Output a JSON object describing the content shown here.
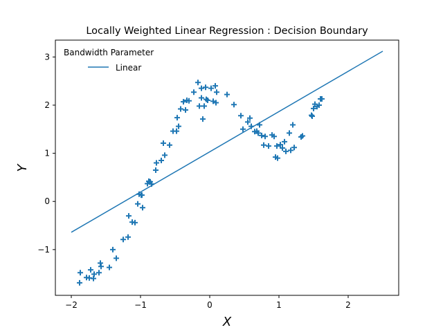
{
  "chart_data": {
    "type": "scatter",
    "title": "Locally Weighted Linear Regression : Decision Boundary",
    "xlabel": "X",
    "ylabel": "Y",
    "xlim": [
      -2.23,
      2.73
    ],
    "ylim": [
      -1.95,
      3.35
    ],
    "xticks": [
      -2,
      -1,
      0,
      1,
      2
    ],
    "yticks": [
      -1,
      0,
      1,
      2,
      3
    ],
    "xtick_labels": [
      "−2",
      "−1",
      "0",
      "1",
      "2"
    ],
    "ytick_labels": [
      "−1",
      "0",
      "1",
      "2",
      "3"
    ],
    "grid": false,
    "legend": {
      "title": "Bandwidth Parameter",
      "placement": "top-left",
      "entries": [
        "Linear"
      ]
    },
    "colors": {
      "series": "#1f77b4"
    },
    "series": [
      {
        "kind": "scatter",
        "marker": "plus",
        "x": [
          -1.88,
          -1.87,
          -1.78,
          -1.74,
          -1.72,
          -1.68,
          -1.67,
          -1.6,
          -1.58,
          -1.57,
          -1.45,
          -1.4,
          -1.35,
          -1.25,
          -1.18,
          -1.17,
          -1.12,
          -1.08,
          -1.04,
          -1.02,
          -0.99,
          -0.97,
          -0.98,
          -0.9,
          -0.88,
          -0.86,
          -0.84,
          -0.78,
          -0.77,
          -0.7,
          -0.67,
          -0.65,
          -0.58,
          -0.53,
          -0.48,
          -0.47,
          -0.45,
          -0.42,
          -0.38,
          -0.35,
          -0.33,
          -0.3,
          -0.23,
          -0.17,
          -0.15,
          -0.12,
          -0.12,
          -0.1,
          -0.08,
          -0.06,
          -0.05,
          -0.03,
          0.02,
          0.05,
          0.08,
          0.09,
          0.1,
          0.25,
          0.35,
          0.45,
          0.48,
          0.55,
          0.58,
          0.6,
          0.65,
          0.68,
          0.7,
          0.72,
          0.75,
          0.78,
          0.8,
          0.85,
          0.9,
          0.93,
          0.95,
          0.98,
          0.97,
          1.02,
          1.05,
          1.08,
          1.1,
          1.15,
          1.17,
          1.2,
          1.22,
          1.32,
          1.34,
          1.47,
          1.48,
          1.5,
          1.52,
          1.55,
          1.58,
          1.6,
          1.62
        ],
        "y": [
          -1.69,
          -1.48,
          -1.58,
          -1.59,
          -1.42,
          -1.6,
          -1.51,
          -1.48,
          -1.28,
          -1.35,
          -1.37,
          -1.0,
          -1.18,
          -0.79,
          -0.74,
          -0.3,
          -0.43,
          -0.44,
          -0.05,
          0.15,
          0.13,
          -0.13,
          0.13,
          0.37,
          0.42,
          0.41,
          0.36,
          0.65,
          0.8,
          0.85,
          1.21,
          0.96,
          1.17,
          1.46,
          1.46,
          1.74,
          1.56,
          1.92,
          2.07,
          1.9,
          2.1,
          2.09,
          2.27,
          2.47,
          1.98,
          2.35,
          2.15,
          1.71,
          1.98,
          2.37,
          2.12,
          2.1,
          2.35,
          2.08,
          2.4,
          2.05,
          2.27,
          2.22,
          2.01,
          1.78,
          1.5,
          1.65,
          1.73,
          1.56,
          1.45,
          1.46,
          1.42,
          1.59,
          1.37,
          1.17,
          1.35,
          1.15,
          1.38,
          1.35,
          0.92,
          0.9,
          1.15,
          1.18,
          1.11,
          1.24,
          1.04,
          1.42,
          1.06,
          1.59,
          1.12,
          1.34,
          1.36,
          1.79,
          1.77,
          1.93,
          2.02,
          1.97,
          2.0,
          2.13,
          2.13
        ]
      },
      {
        "kind": "line",
        "name": "Linear",
        "x": [
          -2.0,
          2.5
        ],
        "y": [
          -0.64,
          3.12
        ]
      }
    ]
  }
}
